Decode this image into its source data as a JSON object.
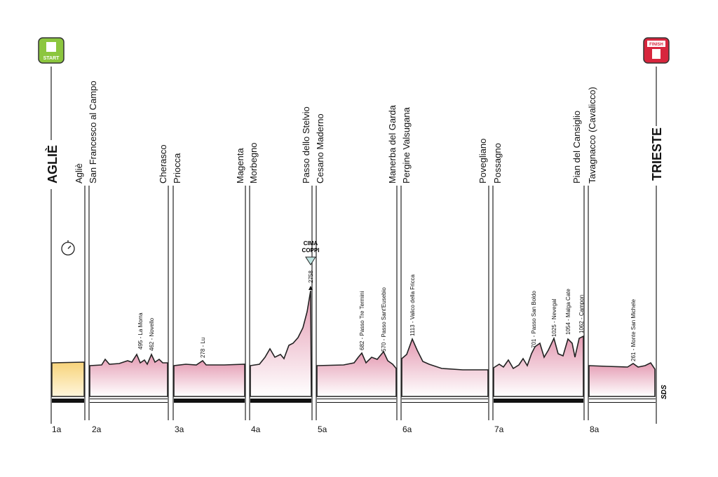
{
  "start": {
    "icon_label": "START",
    "town": "AGLIÈ"
  },
  "finish": {
    "icon_label": "FINISH",
    "town": "TRIESTE"
  },
  "segments": [
    {
      "code": "1a",
      "end": "Agliè"
    },
    {
      "code": "2a",
      "start": "San Francesco al Campo",
      "end": "Cherasco",
      "climbs": [
        "495 - La Morra",
        "462 - Novello"
      ]
    },
    {
      "code": "3a",
      "start": "Priocca",
      "end": "Magenta",
      "climbs": [
        "278 - Lu"
      ]
    },
    {
      "code": "4a",
      "start": "Morbegno",
      "end": "Passo dello Stelvio",
      "climbs": [
        "2758"
      ]
    },
    {
      "code": "5a",
      "start": "Cesano Maderno",
      "end": "Manerba del Garda",
      "climbs": [
        "682 - Passo Tre Termini",
        "570 - Passo Sant'Eusebio"
      ]
    },
    {
      "code": "6a",
      "start": "Pergine Valsugana",
      "end": "Povegliano",
      "climbs": [
        "1113 - Valico della Fricca"
      ]
    },
    {
      "code": "7a",
      "start": "Possagno",
      "end": "Pian del Cansiglio",
      "climbs": [
        "701 - Passo San Boldo",
        "1025 - Nevegal",
        "1054 - Malga Cate",
        "1062 - Campon"
      ]
    },
    {
      "code": "8a",
      "start": "Tavagnacco (Cavalicco)",
      "climbs": [
        "261 - Monte San Michele"
      ]
    }
  ],
  "cima_coppi": [
    "CIMA",
    "COPPI"
  ],
  "credit": "SDS"
}
